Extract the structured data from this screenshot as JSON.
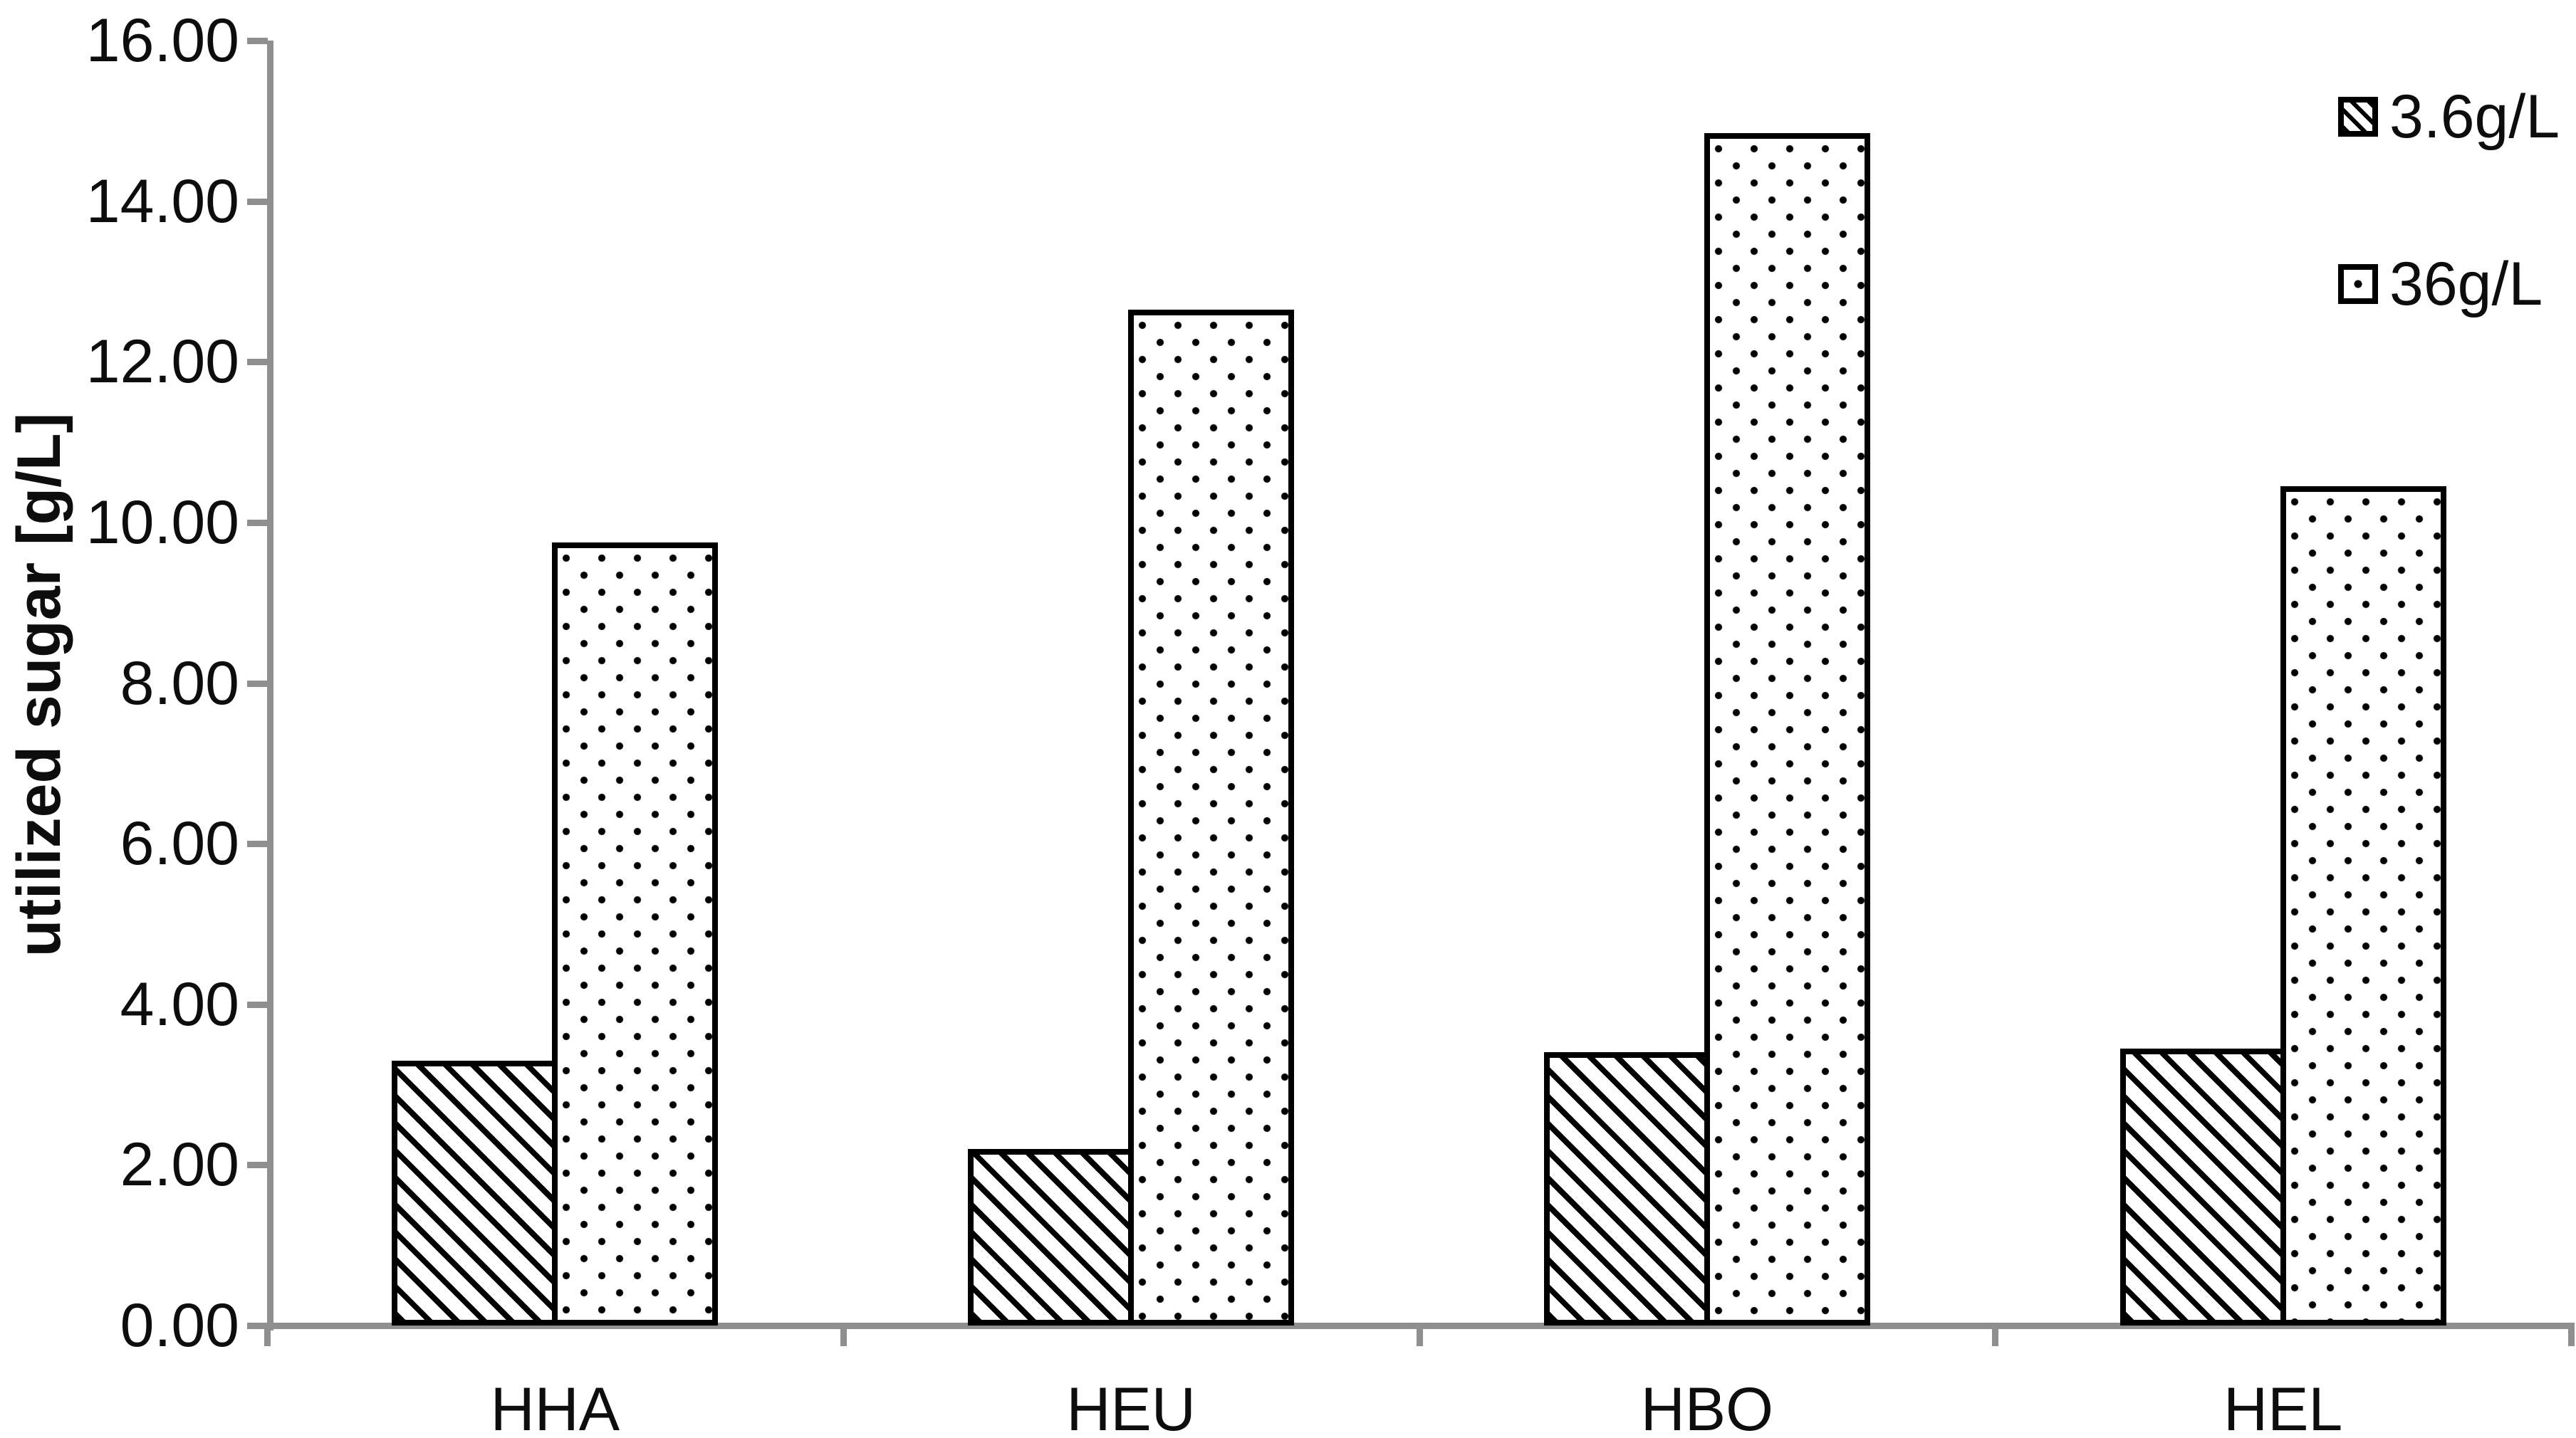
{
  "chart_data": {
    "type": "bar",
    "title": "",
    "xlabel": "",
    "ylabel": "utilized sugar [g/L]",
    "ylim": [
      0,
      16
    ],
    "ytick_step": 2,
    "ytick_labels": [
      "16.00",
      "14.00",
      "12.00",
      "10.00",
      "8.00",
      "6.00",
      "4.00",
      "2.00",
      "0.00"
    ],
    "categories": [
      "HHA",
      "HEU",
      "HBO",
      "HEL"
    ],
    "series": [
      {
        "name": "3.6g/L",
        "pattern": "diagonal-hatch",
        "values": [
          3.3,
          2.2,
          3.4,
          3.45
        ]
      },
      {
        "name": "36g/L",
        "pattern": "dots",
        "values": [
          9.75,
          12.65,
          14.85,
          10.45
        ]
      }
    ],
    "legend_position": "top-right",
    "grid": false,
    "axis_color": "#8f8f8f",
    "bar_border_color": "#000000",
    "bar_fill_color": "#ffffff",
    "text_color": "#0d0d0d"
  }
}
